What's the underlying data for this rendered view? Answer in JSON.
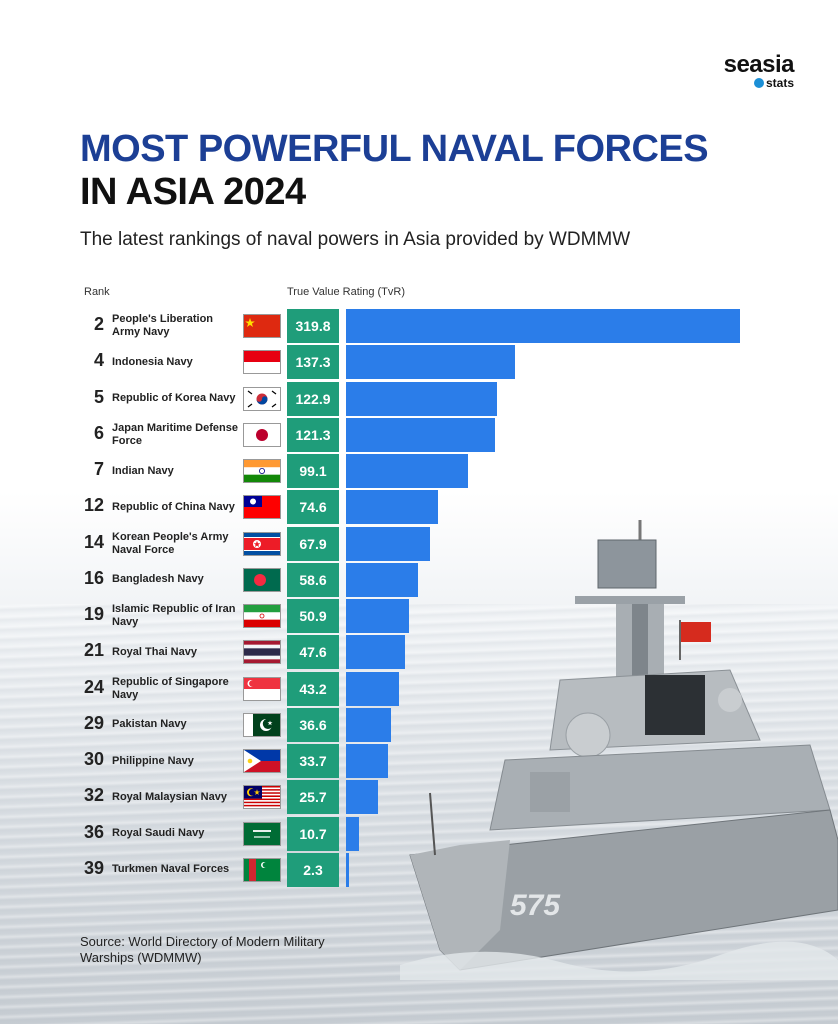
{
  "brand": {
    "line1": "seasia",
    "line2": "stats"
  },
  "title_line1": "MOST POWERFUL NAVAL FORCES",
  "title_line2": "IN ASIA 2024",
  "subtitle": "The latest rankings of naval powers in Asia provided by WDMMW",
  "source": "Source: World Directory of Modern Military Warships (WDMMW)",
  "colors": {
    "title_blue": "#1c3f95",
    "value_box": "#1f9d7a",
    "bar": "#2b7de9"
  },
  "chart_data": {
    "type": "bar",
    "orientation": "horizontal",
    "rank_header": "Rank",
    "value_header": "True Value Rating (TvR)",
    "rows": [
      {
        "rank": "2",
        "name": "People's Liberation Army Navy",
        "flag": "china",
        "value": 319.8
      },
      {
        "rank": "4",
        "name": "Indonesia Navy",
        "flag": "indonesia",
        "value": 137.3
      },
      {
        "rank": "5",
        "name": "Republic of Korea Navy",
        "flag": "south-korea",
        "value": 122.9
      },
      {
        "rank": "6",
        "name": "Japan Maritime Defense Force",
        "flag": "japan",
        "value": 121.3
      },
      {
        "rank": "7",
        "name": "Indian Navy",
        "flag": "india",
        "value": 99.1
      },
      {
        "rank": "12",
        "name": "Republic of China Navy",
        "flag": "taiwan",
        "value": 74.6
      },
      {
        "rank": "14",
        "name": "Korean People's Army Naval Force",
        "flag": "north-korea",
        "value": 67.9
      },
      {
        "rank": "16",
        "name": "Bangladesh Navy",
        "flag": "bangladesh",
        "value": 58.6
      },
      {
        "rank": "19",
        "name": "Islamic Republic of Iran Navy",
        "flag": "iran",
        "value": 50.9
      },
      {
        "rank": "21",
        "name": "Royal Thai Navy",
        "flag": "thailand",
        "value": 47.6
      },
      {
        "rank": "24",
        "name": "Republic of Singapore Navy",
        "flag": "singapore",
        "value": 43.2
      },
      {
        "rank": "29",
        "name": "Pakistan Navy",
        "flag": "pakistan",
        "value": 36.6
      },
      {
        "rank": "30",
        "name": "Philippine Navy",
        "flag": "philippines",
        "value": 33.7
      },
      {
        "rank": "32",
        "name": "Royal Malaysian Navy",
        "flag": "malaysia",
        "value": 25.7
      },
      {
        "rank": "36",
        "name": "Royal Saudi Navy",
        "flag": "saudi-arabia",
        "value": 10.7
      },
      {
        "rank": "39",
        "name": "Turkmen Naval Forces",
        "flag": "turkmenistan",
        "value": 2.3
      }
    ]
  },
  "ship_hull_number": "575"
}
